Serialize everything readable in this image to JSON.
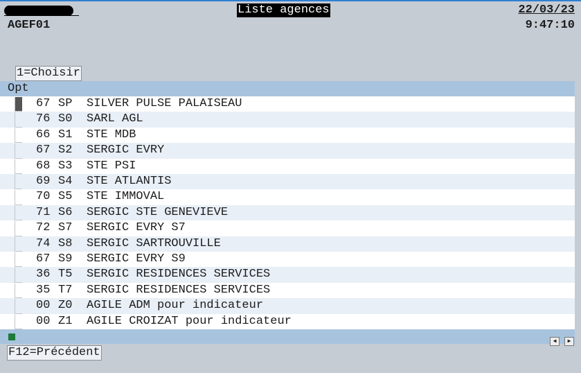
{
  "header": {
    "title": "Liste agences",
    "date": "22/03/23",
    "program": "AGEF01",
    "time": "9:47:10"
  },
  "options": "1=Choisir",
  "column": "Opt",
  "rows": [
    [
      "67",
      "SP",
      "SILVER PULSE PALAISEAU"
    ],
    [
      "76",
      "S0",
      "SARL AGL"
    ],
    [
      "66",
      "S1",
      "STE MDB"
    ],
    [
      "67",
      "S2",
      "SERGIC EVRY"
    ],
    [
      "68",
      "S3",
      "STE PSI"
    ],
    [
      "69",
      "S4",
      "STE ATLANTIS"
    ],
    [
      "70",
      "S5",
      "STE IMMOVAL"
    ],
    [
      "71",
      "S6",
      "SERGIC STE GENEVIEVE"
    ],
    [
      "72",
      "S7",
      "SERGIC EVRY S7"
    ],
    [
      "74",
      "S8",
      "SERGIC SARTROUVILLE"
    ],
    [
      "67",
      "S9",
      "SERGIC EVRY S9"
    ],
    [
      "36",
      "T5",
      "SERGIC RESIDENCES SERVICES"
    ],
    [
      "35",
      "T7",
      "SERGIC RESIDENCES SERVICES"
    ],
    [
      "00",
      "Z0",
      "AGILE ADM pour indicateur"
    ],
    [
      "00",
      "Z1",
      "AGILE CROIZAT pour indicateur"
    ]
  ],
  "footer": "F12=Précédent"
}
